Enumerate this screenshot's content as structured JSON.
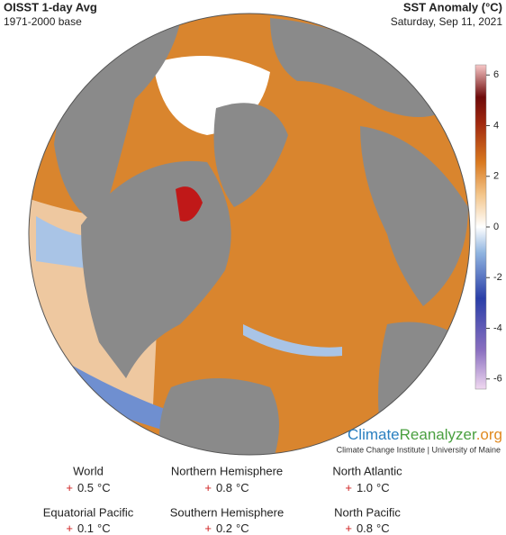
{
  "header": {
    "title": "OISST 1-day Avg",
    "subtitle": "1971-2000 base",
    "variable": "SST Anomaly (°C)",
    "date": "Saturday, Sep 11, 2021"
  },
  "colorbar": {
    "lim": [
      -6.4,
      6.4
    ],
    "ticks": [
      6,
      4,
      2,
      0,
      -2,
      -4,
      -6
    ]
  },
  "logo": {
    "parts": [
      "Climate",
      "Reanalyzer",
      ".org"
    ],
    "caption": "Climate Change Institute | University of Maine"
  },
  "stats": [
    {
      "name": "World",
      "sign": "+",
      "value": "0.5",
      "unit": "°C"
    },
    {
      "name": "Northern Hemisphere",
      "sign": "+",
      "value": "0.8",
      "unit": "°C"
    },
    {
      "name": "North Atlantic",
      "sign": "+",
      "value": "1.0",
      "unit": "°C"
    },
    {
      "name": "Equatorial Pacific",
      "sign": "+",
      "value": "0.1",
      "unit": "°C"
    },
    {
      "name": "Southern Hemisphere",
      "sign": "+",
      "value": "0.2",
      "unit": "°C"
    },
    {
      "name": "North Pacific",
      "sign": "+",
      "value": "0.8",
      "unit": "°C"
    }
  ]
}
